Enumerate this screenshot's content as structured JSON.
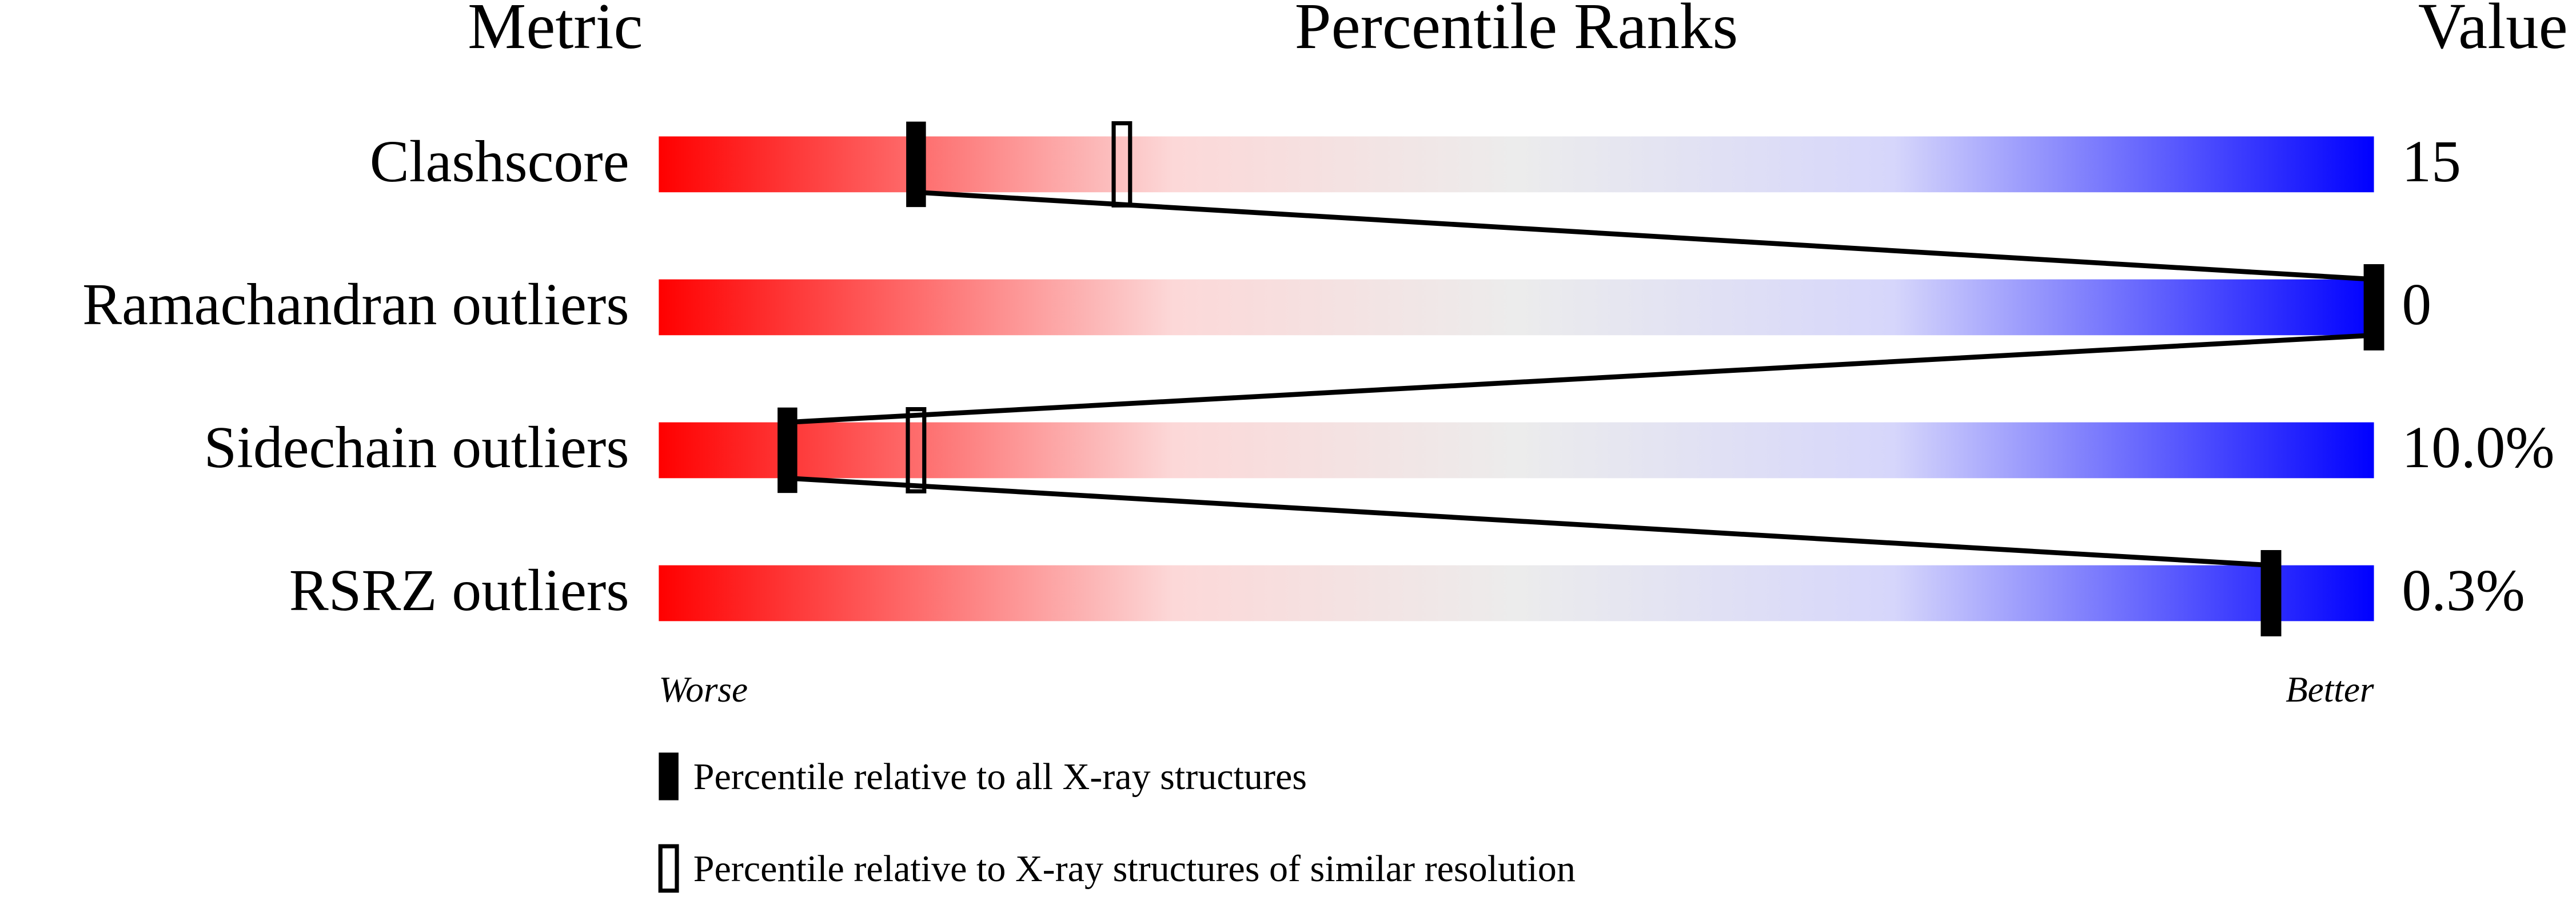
{
  "chart_data": {
    "type": "percentile",
    "title": "Percentile Ranks",
    "metric_header": "Metric",
    "value_header": "Value",
    "categories": [
      "Clashscore",
      "Ramachandran outliers",
      "Sidechain outliers",
      "RSRZ outliers"
    ],
    "values": [
      15,
      0,
      10.0,
      0.3
    ],
    "value_labels": [
      "15",
      "0",
      "10.0%",
      "0.3%"
    ],
    "xlim": [
      0,
      100
    ],
    "worse_label": "Worse",
    "better_label": "Better",
    "series": [
      {
        "name": "Percentile relative to all X-ray structures",
        "color": "#000000",
        "style": "filled",
        "values": [
          15,
          100,
          7.5,
          94
        ]
      },
      {
        "name": "Percentile relative to X-ray structures of similar resolution",
        "color": "#000000",
        "style": "outline",
        "values": [
          27,
          100,
          15,
          94
        ]
      }
    ]
  }
}
